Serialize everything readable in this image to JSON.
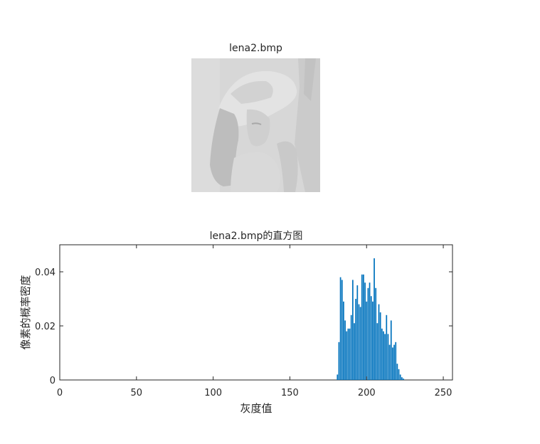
{
  "image_panel": {
    "title": "lena2.bmp"
  },
  "chart_data": {
    "type": "bar",
    "title": "lena2.bmp的直方图",
    "xlabel": "灰度值",
    "ylabel": "像素的概率密度",
    "xlim": [
      0,
      256
    ],
    "ylim": [
      0,
      0.05
    ],
    "xticks": [
      0,
      50,
      100,
      150,
      200,
      250
    ],
    "yticks": [
      0,
      0.02,
      0.04
    ],
    "ytick_labels": [
      "0",
      "0.02",
      "0.04"
    ],
    "bar_color": "#0072BD",
    "x": [
      181,
      182,
      183,
      184,
      185,
      186,
      187,
      188,
      189,
      190,
      191,
      192,
      193,
      194,
      195,
      196,
      197,
      198,
      199,
      200,
      201,
      202,
      203,
      204,
      205,
      206,
      207,
      208,
      209,
      210,
      211,
      212,
      213,
      214,
      215,
      216,
      217,
      218,
      219,
      220,
      221,
      222,
      223,
      224
    ],
    "values": [
      0.002,
      0.014,
      0.038,
      0.037,
      0.029,
      0.022,
      0.018,
      0.019,
      0.019,
      0.024,
      0.037,
      0.021,
      0.03,
      0.035,
      0.028,
      0.027,
      0.039,
      0.039,
      0.036,
      0.029,
      0.034,
      0.036,
      0.031,
      0.029,
      0.045,
      0.034,
      0.021,
      0.028,
      0.025,
      0.019,
      0.018,
      0.017,
      0.024,
      0.017,
      0.013,
      0.022,
      0.012,
      0.013,
      0.014,
      0.006,
      0.004,
      0.002,
      0.001,
      0.0005
    ]
  }
}
